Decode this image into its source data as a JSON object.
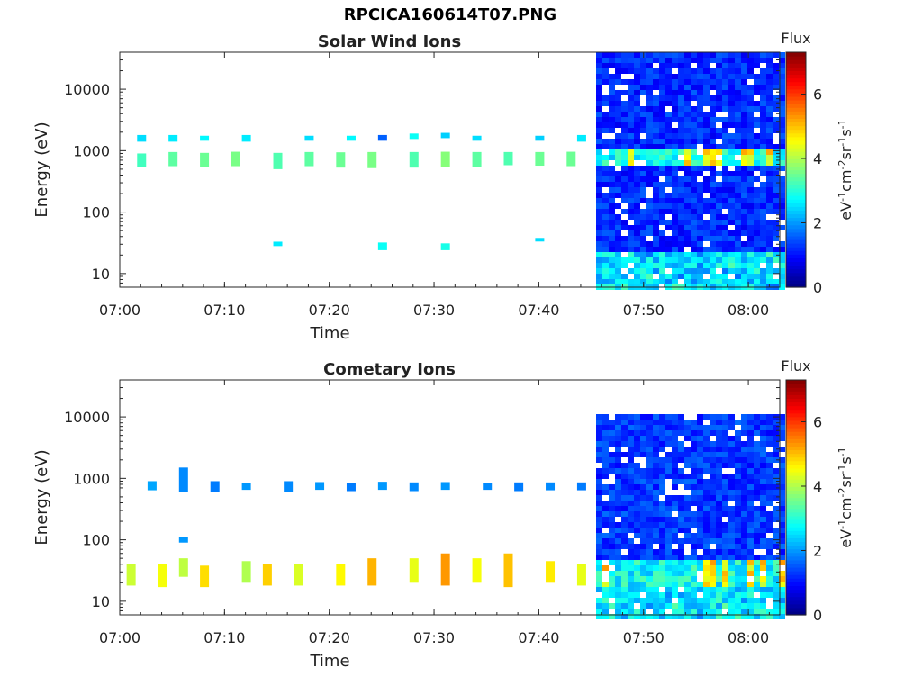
{
  "figure": {
    "title": "RPCICA160614T07.PNG"
  },
  "chart_data": [
    {
      "type": "heatmap",
      "title": "Solar Wind Ions",
      "xlabel": "Time",
      "ylabel": "Energy (eV)",
      "x_tick_labels": [
        "07:00",
        "07:10",
        "07:20",
        "07:30",
        "07:40",
        "07:50",
        "08:00"
      ],
      "x_range": [
        "07:00",
        "08:03"
      ],
      "y_scale": "log",
      "y_tick_labels": [
        "10",
        "100",
        "1000",
        "10000"
      ],
      "y_range": [
        6,
        40000
      ],
      "colorbar": {
        "title": "Flux",
        "label": "eV-1cm-2sr-1s-1",
        "tick_labels": [
          "0",
          "2",
          "4",
          "6"
        ],
        "range": [
          0,
          7.3
        ],
        "colormap": "jet"
      },
      "patches": [
        {
          "t": "07:02",
          "e": [
            550,
            900
          ],
          "v": 3.2
        },
        {
          "t": "07:02",
          "e": [
            1400,
            1800
          ],
          "v": 2.5
        },
        {
          "t": "07:05",
          "e": [
            560,
            950
          ],
          "v": 3.4
        },
        {
          "t": "07:05",
          "e": [
            1400,
            1800
          ],
          "v": 2.6
        },
        {
          "t": "07:08",
          "e": [
            550,
            920
          ],
          "v": 3.5
        },
        {
          "t": "07:08",
          "e": [
            1450,
            1750
          ],
          "v": 2.7
        },
        {
          "t": "07:11",
          "e": [
            560,
            960
          ],
          "v": 3.6
        },
        {
          "t": "07:12",
          "e": [
            1400,
            1800
          ],
          "v": 2.6
        },
        {
          "t": "07:15",
          "e": [
            500,
            920
          ],
          "v": 3.3
        },
        {
          "t": "07:15",
          "e": [
            28,
            33
          ],
          "v": 2.6
        },
        {
          "t": "07:18",
          "e": [
            560,
            950
          ],
          "v": 3.4
        },
        {
          "t": "07:18",
          "e": [
            1450,
            1750
          ],
          "v": 2.5
        },
        {
          "t": "07:21",
          "e": [
            530,
            940
          ],
          "v": 3.5
        },
        {
          "t": "07:22",
          "e": [
            1450,
            1750
          ],
          "v": 2.7
        },
        {
          "t": "07:24",
          "e": [
            520,
            950
          ],
          "v": 3.6
        },
        {
          "t": "07:25",
          "e": [
            24,
            32
          ],
          "v": 2.8
        },
        {
          "t": "07:25",
          "e": [
            1450,
            1800
          ],
          "v": 1.6
        },
        {
          "t": "07:28",
          "e": [
            530,
            950
          ],
          "v": 3.3
        },
        {
          "t": "07:28",
          "e": [
            1550,
            1900
          ],
          "v": 2.8
        },
        {
          "t": "07:31",
          "e": [
            24,
            31
          ],
          "v": 2.9
        },
        {
          "t": "07:31",
          "e": [
            550,
            960
          ],
          "v": 3.7
        },
        {
          "t": "07:31",
          "e": [
            1600,
            1950
          ],
          "v": 2.4
        },
        {
          "t": "07:34",
          "e": [
            540,
            950
          ],
          "v": 3.4
        },
        {
          "t": "07:34",
          "e": [
            1450,
            1750
          ],
          "v": 2.5
        },
        {
          "t": "07:37",
          "e": [
            580,
            950
          ],
          "v": 3.3
        },
        {
          "t": "07:40",
          "e": [
            34,
            38
          ],
          "v": 2.5
        },
        {
          "t": "07:40",
          "e": [
            570,
            950
          ],
          "v": 3.5
        },
        {
          "t": "07:40",
          "e": [
            1450,
            1750
          ],
          "v": 2.4
        },
        {
          "t": "07:43",
          "e": [
            560,
            960
          ],
          "v": 3.5
        },
        {
          "t": "07:44",
          "e": [
            1400,
            1800
          ],
          "v": 2.6
        }
      ],
      "dense_segment": {
        "start": "07:45.5",
        "end": "08:03",
        "e_range": [
          6,
          40000
        ],
        "background_level": 1.2,
        "high_level_band": [
          600,
          950
        ]
      }
    },
    {
      "type": "heatmap",
      "title": "Cometary Ions",
      "xlabel": "Time",
      "ylabel": "Energy (eV)",
      "x_tick_labels": [
        "07:00",
        "07:10",
        "07:20",
        "07:30",
        "07:40",
        "07:50",
        "08:00"
      ],
      "x_range": [
        "07:00",
        "08:03"
      ],
      "y_scale": "log",
      "y_tick_labels": [
        "10",
        "100",
        "1000",
        "10000"
      ],
      "y_range": [
        6,
        40000
      ],
      "colorbar": {
        "title": "Flux",
        "label": "eV-1cm-2sr-1s-1",
        "tick_labels": [
          "0",
          "2",
          "4",
          "6"
        ],
        "range": [
          0,
          7.3
        ],
        "colormap": "jet"
      },
      "patches": [
        {
          "t": "07:01",
          "e": [
            18,
            40
          ],
          "v": 4.2
        },
        {
          "t": "07:03",
          "e": [
            640,
            900
          ],
          "v": 2.1
        },
        {
          "t": "07:04",
          "e": [
            17,
            40
          ],
          "v": 4.5
        },
        {
          "t": "07:06",
          "e": [
            600,
            1500
          ],
          "v": 1.9
        },
        {
          "t": "07:06",
          "e": [
            90,
            110
          ],
          "v": 2.0
        },
        {
          "t": "07:06",
          "e": [
            25,
            50
          ],
          "v": 4.1
        },
        {
          "t": "07:08",
          "e": [
            17,
            38
          ],
          "v": 4.8
        },
        {
          "t": "07:09",
          "e": [
            600,
            900
          ],
          "v": 1.8
        },
        {
          "t": "07:12",
          "e": [
            650,
            850
          ],
          "v": 2.0
        },
        {
          "t": "07:12",
          "e": [
            20,
            45
          ],
          "v": 4.0
        },
        {
          "t": "07:14",
          "e": [
            18,
            40
          ],
          "v": 4.9
        },
        {
          "t": "07:16",
          "e": [
            600,
            900
          ],
          "v": 1.9
        },
        {
          "t": "07:17",
          "e": [
            18,
            40
          ],
          "v": 4.3
        },
        {
          "t": "07:19",
          "e": [
            650,
            870
          ],
          "v": 2.0
        },
        {
          "t": "07:21",
          "e": [
            18,
            40
          ],
          "v": 4.6
        },
        {
          "t": "07:22",
          "e": [
            620,
            850
          ],
          "v": 1.8
        },
        {
          "t": "07:24",
          "e": [
            18,
            50
          ],
          "v": 5.1
        },
        {
          "t": "07:25",
          "e": [
            650,
            880
          ],
          "v": 2.0
        },
        {
          "t": "07:28",
          "e": [
            20,
            50
          ],
          "v": 4.4
        },
        {
          "t": "07:28",
          "e": [
            620,
            860
          ],
          "v": 1.9
        },
        {
          "t": "07:31",
          "e": [
            18,
            60
          ],
          "v": 5.3
        },
        {
          "t": "07:31",
          "e": [
            650,
            870
          ],
          "v": 2.0
        },
        {
          "t": "07:34",
          "e": [
            20,
            50
          ],
          "v": 4.5
        },
        {
          "t": "07:35",
          "e": [
            650,
            850
          ],
          "v": 1.9
        },
        {
          "t": "07:37",
          "e": [
            17,
            60
          ],
          "v": 5.0
        },
        {
          "t": "07:38",
          "e": [
            620,
            860
          ],
          "v": 1.8
        },
        {
          "t": "07:41",
          "e": [
            20,
            45
          ],
          "v": 4.7
        },
        {
          "t": "07:41",
          "e": [
            640,
            860
          ],
          "v": 1.9
        },
        {
          "t": "07:44",
          "e": [
            18,
            40
          ],
          "v": 4.4
        },
        {
          "t": "07:44",
          "e": [
            640,
            860
          ],
          "v": 1.8
        }
      ],
      "dense_segment": {
        "start": "07:45.5",
        "end": "08:03",
        "e_range": [
          6,
          11000
        ],
        "background_level": 1.3,
        "high_level_band": [
          18,
          40
        ]
      }
    }
  ]
}
